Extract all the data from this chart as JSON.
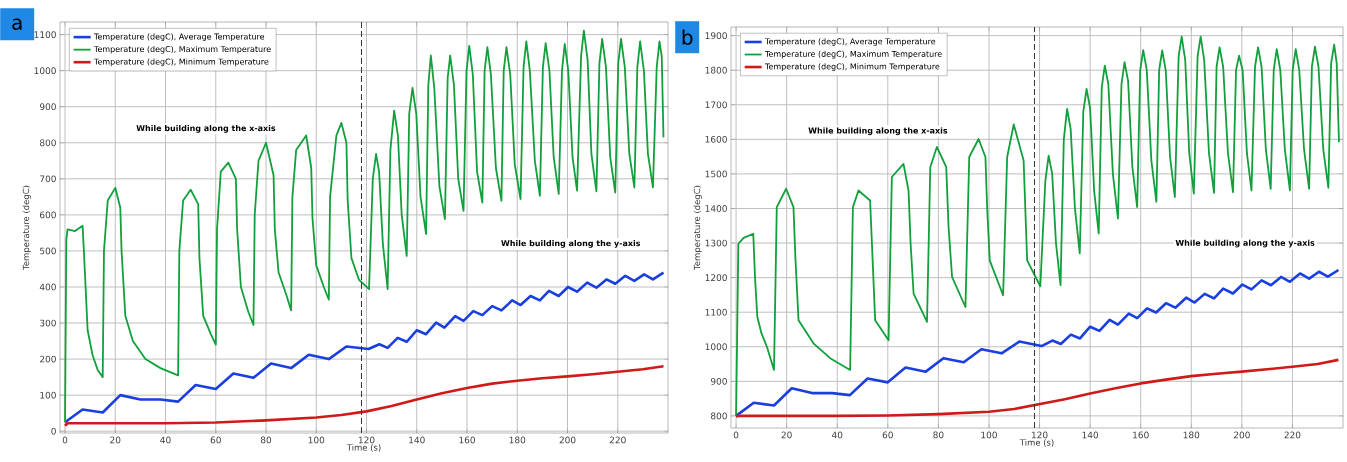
{
  "chart_data": [
    {
      "type": "line",
      "title": "a",
      "xlabel": "Time (s)",
      "ylabel": "Temperature (degC)",
      "xlim": [
        -2,
        240
      ],
      "ylim": [
        -5,
        1135
      ],
      "xticks": [
        0,
        20,
        40,
        60,
        80,
        100,
        120,
        140,
        160,
        180,
        200,
        220
      ],
      "yticks": [
        0,
        100,
        200,
        300,
        400,
        500,
        600,
        700,
        800,
        900,
        1000,
        1100
      ],
      "grid": true,
      "legend": "top left",
      "annotations": [
        "While building along the x-axis",
        "While building along the y-axis"
      ],
      "ref_lines": [
        {
          "axis": "x",
          "value": 118,
          "color": "#333333",
          "line_style": "dashed"
        }
      ],
      "series": [
        {
          "name": "Temperature (degC), Average Temperature",
          "color": "#1a3fe0",
          "x": [
            0,
            7,
            15,
            22,
            30,
            38,
            45,
            52,
            60,
            67,
            75,
            82,
            90,
            97,
            105,
            112,
            120.8,
            125.1,
            128.4,
            132.4,
            136,
            140,
            143.7,
            147.7,
            151,
            155.3,
            158.6,
            162.5,
            166.1,
            170,
            173.7,
            178,
            181.3,
            185.3,
            189,
            192.6,
            196.5,
            200.2,
            203.8,
            207.8,
            211.5,
            215.5,
            219,
            223,
            226.6,
            230.5,
            234,
            238.2
          ],
          "values": [
            25,
            60,
            52,
            100,
            88,
            88,
            82,
            128,
            117,
            160,
            148,
            188,
            175,
            212,
            200,
            235,
            228,
            241,
            231,
            259,
            248,
            280,
            269,
            301,
            287,
            319,
            306,
            333,
            322,
            347,
            335,
            363,
            350,
            375,
            363,
            389,
            375,
            400,
            387,
            412,
            398,
            421,
            409,
            431,
            417,
            435,
            421,
            440
          ]
        },
        {
          "name": "Temperature (degC), Maximum Temperature",
          "color": "#12a03c",
          "x": [
            0,
            0.5,
            1,
            4,
            7,
            7.5,
            9,
            11,
            13,
            15,
            15.5,
            17,
            20,
            22,
            22.5,
            24,
            27,
            32,
            38,
            45,
            45.5,
            47,
            50,
            53,
            53.5,
            55,
            58,
            60,
            60.5,
            62,
            65,
            68,
            68.5,
            70,
            73,
            75,
            75.5,
            77,
            80,
            83,
            83.5,
            85,
            88,
            90,
            90.5,
            92,
            96,
            98,
            98.5,
            100,
            103,
            105,
            105.5,
            108,
            110,
            112,
            112.5,
            114,
            117,
            121,
            122.5,
            123.8,
            125,
            126.5,
            128.4,
            129.5,
            131,
            132.5,
            134,
            136,
            137,
            138.3,
            139.8,
            141.5,
            143.7,
            144.6,
            145.6,
            147,
            149,
            151.2,
            152.3,
            153.3,
            154.8,
            156.5,
            158.6,
            159.8,
            160.9,
            162.3,
            164,
            166.1,
            167,
            168.1,
            169.5,
            171.5,
            173.7,
            174.6,
            175.7,
            177.2,
            179,
            181.3,
            182.5,
            183.6,
            185,
            187,
            189,
            190.2,
            191.3,
            192.8,
            194.5,
            196.5,
            197.8,
            198.9,
            200.3,
            202,
            203.8,
            205.4,
            206.5,
            208,
            209.5,
            211.5,
            212.7,
            213.8,
            215.3,
            217,
            219,
            220.2,
            221.3,
            222.8,
            224.6,
            226.6,
            227.8,
            228.9,
            230.4,
            232,
            234,
            235.5,
            236.6,
            237.5,
            238.2
          ],
          "values": [
            25,
            530,
            560,
            555,
            570,
            500,
            280,
            210,
            170,
            150,
            500,
            640,
            675,
            620,
            500,
            320,
            250,
            200,
            175,
            155,
            500,
            640,
            670,
            630,
            480,
            320,
            270,
            240,
            560,
            720,
            745,
            700,
            560,
            400,
            330,
            295,
            600,
            750,
            800,
            710,
            560,
            440,
            380,
            335,
            650,
            780,
            820,
            730,
            590,
            460,
            400,
            365,
            650,
            820,
            855,
            800,
            640,
            480,
            420,
            394,
            700,
            769,
            720,
            520,
            394,
            780,
            889,
            820,
            600,
            486,
            880,
            952,
            880,
            650,
            547,
            960,
            1042,
            950,
            680,
            588,
            980,
            1042,
            960,
            700,
            611,
            1000,
            1069,
            990,
            720,
            634,
            1000,
            1065,
            990,
            730,
            639,
            1000,
            1065,
            990,
            740,
            644,
            1010,
            1081,
            1000,
            750,
            653,
            1010,
            1076,
            1000,
            760,
            658,
            1000,
            1074,
            1000,
            760,
            667,
            1040,
            1111,
            1030,
            770,
            665,
            1020,
            1088,
            1010,
            760,
            662,
            1020,
            1088,
            1010,
            770,
            676,
            1010,
            1081,
            1000,
            770,
            676,
            1010,
            1081,
            1040,
            815
          ]
        },
        {
          "name": "Temperature (degC), Minimum Temperature",
          "color": "#d01a1a",
          "x": [
            0,
            1,
            20,
            40,
            60,
            80,
            100,
            110,
            120,
            130,
            140,
            150,
            160,
            170,
            180,
            190,
            200,
            210,
            220,
            230,
            238.2
          ],
          "values": [
            15,
            22,
            22,
            22,
            24,
            30,
            38,
            45,
            55,
            70,
            88,
            105,
            120,
            132,
            140,
            147,
            152,
            158,
            165,
            172,
            180
          ]
        }
      ]
    },
    {
      "type": "line",
      "title": "b",
      "xlabel": "Time (s)",
      "ylabel": "Temperature (degC)",
      "xlim": [
        -2,
        240
      ],
      "ylim": [
        765,
        1925
      ],
      "xticks": [
        0,
        20,
        40,
        60,
        80,
        100,
        120,
        140,
        160,
        180,
        200,
        220
      ],
      "yticks": [
        800,
        900,
        1000,
        1100,
        1200,
        1300,
        1400,
        1500,
        1600,
        1700,
        1800,
        1900
      ],
      "grid": true,
      "legend": "top left",
      "annotations": [
        "While building along the x-axis",
        "While building along the y-axis"
      ],
      "ref_lines": [
        {
          "axis": "x",
          "value": 118,
          "color": "#333333",
          "line_style": "dashed"
        }
      ],
      "series": [
        {
          "name": "Temperature (degC), Average Temperature",
          "color": "#1a3fe0",
          "x": [
            0,
            7,
            15,
            22,
            30,
            38,
            45,
            52,
            60,
            67,
            75,
            82,
            90,
            97,
            105,
            112,
            120.8,
            125.1,
            128.4,
            132.4,
            136,
            140,
            143.7,
            147.7,
            151,
            155.3,
            158.6,
            162.5,
            166.1,
            170,
            173.7,
            178,
            181.3,
            185.3,
            189,
            192.6,
            196.5,
            200.2,
            203.8,
            207.8,
            211.5,
            215.5,
            219,
            223,
            226.6,
            230.5,
            234,
            238.2
          ],
          "values": [
            800,
            838,
            830,
            880,
            866,
            866,
            860,
            908,
            897,
            940,
            928,
            967,
            955,
            993,
            981,
            1015,
            1002,
            1018,
            1008,
            1035,
            1024,
            1058,
            1046,
            1078,
            1064,
            1096,
            1083,
            1111,
            1099,
            1126,
            1113,
            1142,
            1128,
            1153,
            1140,
            1168,
            1154,
            1180,
            1166,
            1192,
            1178,
            1202,
            1188,
            1212,
            1197,
            1217,
            1203,
            1222
          ]
        },
        {
          "name": "Temperature (degC), Maximum Temperature",
          "color": "#12a03c",
          "x": [
            0,
            0.9,
            3,
            6.8,
            7.5,
            8.4,
            10,
            12.2,
            15,
            16.1,
            19.8,
            22.7,
            23.5,
            24.7,
            30.6,
            37.2,
            45.1,
            46.2,
            48.4,
            53,
            54,
            55,
            60.3,
            61.6,
            66.2,
            68.2,
            69,
            70.2,
            75.5,
            76.8,
            79.4,
            83.1,
            84,
            85.4,
            90.7,
            92.2,
            95.9,
            98.6,
            99.3,
            100.3,
            105.6,
            107.2,
            109.8,
            113.7,
            115.1,
            120.3,
            122.3,
            123.6,
            125,
            126.5,
            128.3,
            129.6,
            130.9,
            132.3,
            134,
            135.9,
            137.3,
            138.6,
            140,
            141.6,
            143.4,
            144.6,
            145.8,
            147.2,
            149,
            151,
            152.4,
            153.6,
            155,
            156.7,
            158.6,
            159.8,
            161,
            162.4,
            164.2,
            166.2,
            167.3,
            168.5,
            169.9,
            171.6,
            173.5,
            175,
            176.2,
            177.6,
            179.2,
            181,
            182.5,
            183.7,
            185.1,
            187,
            189,
            190,
            191.2,
            192.6,
            194.5,
            196.5,
            197.7,
            198.9,
            200.3,
            202,
            203.8,
            205.2,
            206.4,
            207.8,
            209.5,
            211.4,
            212.6,
            213.8,
            215.2,
            217,
            219,
            220.1,
            221.3,
            222.7,
            224.6,
            226.6,
            227.7,
            228.9,
            230.3,
            232.2,
            234.2,
            235.3,
            236.5,
            237.5,
            238.4
          ],
          "values": [
            800,
            1298,
            1315,
            1327,
            1200,
            1087,
            1040,
            1000,
            933,
            1404,
            1457,
            1404,
            1250,
            1077,
            1010,
            967,
            933,
            1404,
            1452,
            1423,
            1250,
            1077,
            1019,
            1491,
            1529,
            1452,
            1300,
            1154,
            1072,
            1520,
            1578,
            1520,
            1350,
            1202,
            1115,
            1549,
            1601,
            1549,
            1400,
            1250,
            1149,
            1549,
            1643,
            1539,
            1250,
            1175,
            1480,
            1553,
            1500,
            1300,
            1178,
            1600,
            1688,
            1630,
            1400,
            1270,
            1680,
            1746,
            1690,
            1450,
            1327,
            1750,
            1813,
            1760,
            1500,
            1371,
            1760,
            1823,
            1770,
            1520,
            1404,
            1800,
            1858,
            1800,
            1540,
            1419,
            1800,
            1857,
            1800,
            1550,
            1433,
            1840,
            1897,
            1830,
            1560,
            1443,
            1840,
            1897,
            1830,
            1560,
            1445,
            1810,
            1866,
            1810,
            1560,
            1447,
            1800,
            1842,
            1800,
            1560,
            1452,
            1810,
            1866,
            1810,
            1570,
            1457,
            1800,
            1861,
            1800,
            1570,
            1452,
            1800,
            1861,
            1800,
            1570,
            1457,
            1810,
            1868,
            1810,
            1570,
            1460,
            1820,
            1874,
            1820,
            1592
          ]
        },
        {
          "name": "Temperature (degC), Minimum Temperature",
          "color": "#d01a1a",
          "x": [
            0,
            1,
            20,
            40,
            60,
            80,
            100,
            110,
            120,
            130,
            140,
            150,
            160,
            170,
            180,
            190,
            200,
            210,
            220,
            230,
            238.2
          ],
          "values": [
            798,
            800,
            800,
            800,
            801,
            805,
            812,
            820,
            834,
            848,
            865,
            880,
            894,
            905,
            915,
            922,
            928,
            935,
            942,
            950,
            962
          ]
        }
      ]
    }
  ]
}
